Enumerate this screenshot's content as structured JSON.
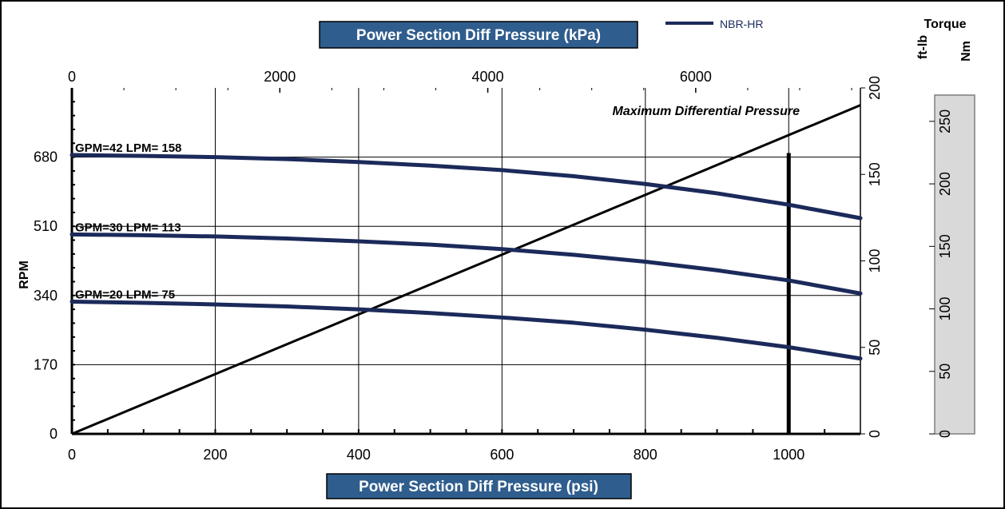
{
  "chart_data": {
    "type": "line",
    "title": "",
    "xlabel_bottom": "Power Section Diff Pressure (psi)",
    "xlabel_top": "Power Section Diff Pressure (kPa)",
    "ylabel_left": "RPM",
    "ylabel_right_ftlb": "ft-lb",
    "ylabel_right_nm_title": "Torque",
    "ylabel_right_nm": "Nm",
    "legend": {
      "label": "NBR-HR",
      "color": "#1b2a5a",
      "position": "top"
    },
    "x_psi": {
      "range": [
        0,
        1100
      ],
      "ticks": [
        0,
        200,
        400,
        600,
        800,
        1000
      ],
      "labels": [
        "0",
        "200",
        "400",
        "600",
        "800",
        "1000"
      ]
    },
    "x_kpa": {
      "range": [
        0,
        7584
      ],
      "ticks": [
        0,
        2000,
        4000,
        6000
      ],
      "labels": [
        "0",
        "2000",
        "4000",
        "6000"
      ]
    },
    "y_rpm": {
      "range": [
        0,
        850
      ],
      "ticks": [
        0,
        170,
        340,
        510,
        680
      ],
      "labels": [
        "0",
        "170",
        "340",
        "510",
        "680"
      ]
    },
    "y_ftlb": {
      "range": [
        0,
        200
      ],
      "ticks": [
        0,
        50,
        100,
        150,
        200
      ],
      "labels": [
        "0",
        "50",
        "100",
        "150",
        "200"
      ]
    },
    "y_nm": {
      "range": [
        0,
        271
      ],
      "ticks": [
        0,
        50,
        100,
        150,
        200,
        250
      ],
      "labels": [
        "0",
        "50",
        "100",
        "150",
        "200",
        "250"
      ]
    },
    "series": [
      {
        "name": "GPM=42 LPM= 158",
        "x": [
          0,
          100,
          200,
          300,
          400,
          500,
          600,
          700,
          800,
          900,
          1000,
          1100
        ],
        "y": [
          685,
          683,
          680,
          675,
          668,
          659,
          648,
          633,
          614,
          591,
          563,
          530
        ]
      },
      {
        "name": "GPM=30 LPM= 113",
        "x": [
          0,
          100,
          200,
          300,
          400,
          500,
          600,
          700,
          800,
          900,
          1000,
          1100
        ],
        "y": [
          490,
          488,
          485,
          480,
          473,
          465,
          454,
          440,
          423,
          402,
          377,
          345
        ]
      },
      {
        "name": "GPM=20 LPM= 75",
        "x": [
          0,
          100,
          200,
          300,
          400,
          500,
          600,
          700,
          800,
          900,
          1000,
          1100
        ],
        "y": [
          325,
          322,
          318,
          313,
          306,
          297,
          286,
          273,
          256,
          236,
          213,
          185
        ]
      }
    ],
    "torque_line": {
      "x": [
        0,
        1100
      ],
      "ftlb": [
        0,
        190
      ],
      "color": "#000000"
    },
    "max_pressure": {
      "label": "Maximum Differential Pressure",
      "psi": 1000,
      "rpm_top": 690
    },
    "grid": true
  }
}
